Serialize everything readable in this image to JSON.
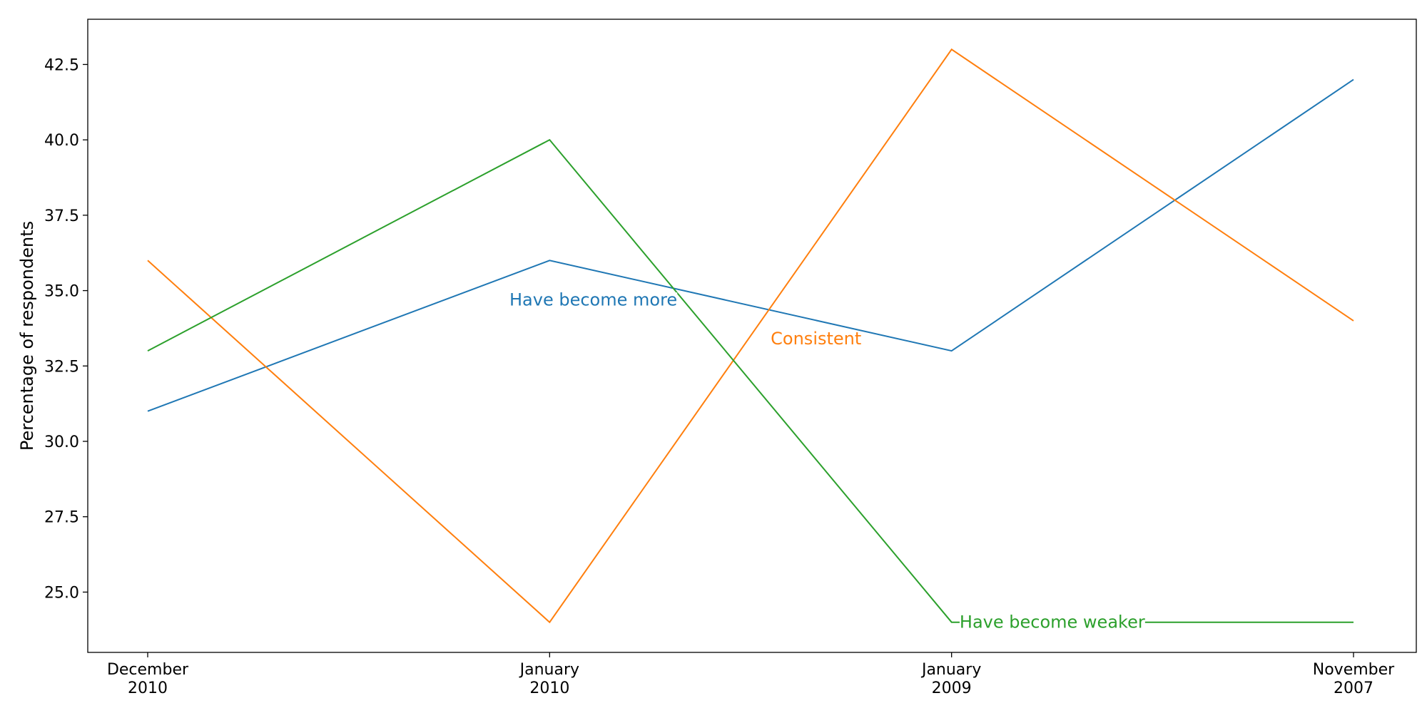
{
  "chart_data": {
    "type": "line",
    "title": "",
    "xlabel": "",
    "ylabel": "Percentage of respondents",
    "categories": [
      [
        "December",
        "2010"
      ],
      [
        "January",
        "2010"
      ],
      [
        "January",
        "2009"
      ],
      [
        "November",
        "2007"
      ]
    ],
    "ylim": [
      23.0,
      44.0
    ],
    "yticks": [
      "25.0",
      "27.5",
      "30.0",
      "32.5",
      "35.0",
      "37.5",
      "40.0",
      "42.5"
    ],
    "grid": false,
    "series": [
      {
        "name": "Have become more",
        "color": "#1f77b4",
        "values": [
          31,
          36,
          33,
          42
        ],
        "label_anchor": {
          "x_index": 0.9,
          "y": 34.7
        }
      },
      {
        "name": "Consistent",
        "color": "#ff7f0e",
        "values": [
          36,
          24,
          43,
          34
        ],
        "label_anchor": {
          "x_index": 1.55,
          "y": 33.4
        }
      },
      {
        "name": "Have become weaker",
        "color": "#2ca02c",
        "values": [
          33,
          40,
          24,
          24
        ],
        "label_anchor": {
          "x_index": 2.02,
          "y": 24.0
        }
      }
    ]
  }
}
